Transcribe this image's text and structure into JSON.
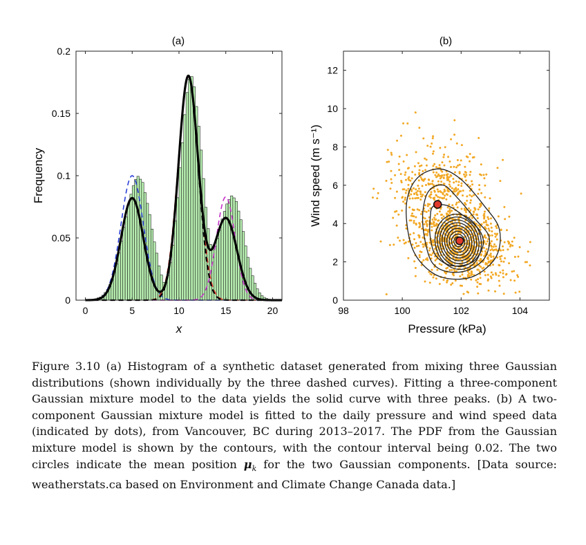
{
  "chart_data": [
    {
      "type": "bar",
      "panel_label": "(a)",
      "xlabel": "x",
      "ylabel": "Frequency",
      "xlim": [
        -1,
        21
      ],
      "ylim": [
        0,
        0.2
      ],
      "xticks": [
        0,
        5,
        10,
        15,
        20
      ],
      "yticks": [
        0,
        0.05,
        0.1,
        0.15,
        0.2
      ],
      "ytick_labels": [
        "0",
        "0.05",
        "0.1",
        "0.15",
        "0.2"
      ],
      "grid": false,
      "bar_color": "#b7eeb0",
      "histogram": {
        "bin_edges_start": 0,
        "bin_width": 0.25,
        "values": [
          0.0002,
          0.0003,
          0.0005,
          0.0008,
          0.0012,
          0.0019,
          0.0026,
          0.004,
          0.0062,
          0.0085,
          0.0125,
          0.0162,
          0.0228,
          0.0293,
          0.038,
          0.0476,
          0.0585,
          0.0668,
          0.0772,
          0.0851,
          0.0919,
          0.097,
          0.0995,
          0.0972,
          0.0946,
          0.0864,
          0.0778,
          0.0688,
          0.0571,
          0.0468,
          0.0378,
          0.0276,
          0.0202,
          0.0142,
          0.0142,
          0.02,
          0.0301,
          0.0441,
          0.0638,
          0.0823,
          0.1064,
          0.1265,
          0.149,
          0.1668,
          0.1776,
          0.1796,
          0.1714,
          0.1556,
          0.1398,
          0.1206,
          0.0977,
          0.0746,
          0.0575,
          0.0448,
          0.0405,
          0.0432,
          0.0498,
          0.0562,
          0.0652,
          0.0713,
          0.0773,
          0.0808,
          0.0838,
          0.0822,
          0.0793,
          0.0716,
          0.0646,
          0.0552,
          0.0436,
          0.0344,
          0.0256,
          0.0196,
          0.0136,
          0.0091,
          0.0058,
          0.0036,
          0.0022,
          0.0013,
          0.0008,
          0.0004
        ]
      },
      "series": [
        {
          "style": "dashed",
          "color": "#2b3fd6",
          "mean": 5,
          "sd": 1.2,
          "peak": 0.1
        },
        {
          "style": "dashed",
          "color": "#e8352a",
          "mean": 11,
          "sd": 1.1,
          "peak": 0.18
        },
        {
          "style": "dashed",
          "color": "#c430c8",
          "mean": 15,
          "sd": 1.0,
          "peak": 0.083
        },
        {
          "style": "solid",
          "color": "#000000",
          "components": [
            {
              "mean": 5,
              "sd": 1.2,
              "peak": 0.082
            },
            {
              "mean": 11,
              "sd": 1.05,
              "peak": 0.18
            },
            {
              "mean": 15,
              "sd": 1.2,
              "peak": 0.066
            }
          ]
        },
        {
          "style": "dashed",
          "color": "#000000",
          "mean": 11,
          "sd": 1.05,
          "peak": 0.18
        }
      ]
    },
    {
      "type": "scatter",
      "panel_label": "(b)",
      "xlabel": "Pressure (kPa)",
      "ylabel": "Wind speed (m s⁻¹)",
      "xlim": [
        98,
        105
      ],
      "ylim": [
        0,
        13
      ],
      "xticks": [
        98,
        100,
        102,
        104
      ],
      "yticks": [
        0,
        2,
        4,
        6,
        8,
        10,
        12
      ],
      "grid": false,
      "point_color": "#f2a824",
      "points": {
        "n": 1300,
        "mean": [
          101.9,
          3.1
        ],
        "sd": [
          0.9,
          1.2
        ],
        "correlation": -0.35
      },
      "contours": {
        "interval": 0.02,
        "center": [
          101.9,
          3.05
        ],
        "outer_paths": [
          [
            [
              100.6,
              6.5
            ],
            [
              101.3,
              6.85
            ],
            [
              102.0,
              6.3
            ],
            [
              102.8,
              4.9
            ],
            [
              103.3,
              3.7
            ],
            [
              103.2,
              2.3
            ],
            [
              102.5,
              1.3
            ],
            [
              101.7,
              1.1
            ],
            [
              101.0,
              1.45
            ],
            [
              100.4,
              2.5
            ],
            [
              100.15,
              4.1
            ],
            [
              100.2,
              5.5
            ]
          ],
          [
            [
              100.9,
              5.7
            ],
            [
              101.4,
              6.0
            ],
            [
              101.9,
              5.3
            ],
            [
              102.5,
              4.2
            ],
            [
              102.95,
              3.3
            ],
            [
              102.8,
              2.2
            ],
            [
              102.2,
              1.55
            ],
            [
              101.5,
              1.5
            ],
            [
              101.0,
              2.0
            ],
            [
              100.75,
              3.3
            ],
            [
              100.7,
              4.6
            ]
          ],
          [
            [
              101.05,
              4.9
            ],
            [
              101.5,
              4.95
            ],
            [
              102.0,
              4.5
            ],
            [
              102.6,
              3.7
            ],
            [
              102.75,
              2.9
            ],
            [
              102.4,
              2.0
            ],
            [
              101.7,
              1.8
            ],
            [
              101.15,
              2.3
            ],
            [
              100.95,
              3.3
            ],
            [
              100.95,
              4.3
            ]
          ]
        ],
        "ellipse_radii": [
          [
            0.78,
            1.45
          ],
          [
            0.7,
            1.3
          ],
          [
            0.62,
            1.15
          ],
          [
            0.54,
            1.0
          ],
          [
            0.46,
            0.85
          ],
          [
            0.38,
            0.7
          ],
          [
            0.3,
            0.55
          ],
          [
            0.22,
            0.4
          ],
          [
            0.14,
            0.26
          ],
          [
            0.07,
            0.13
          ]
        ]
      },
      "means": [
        {
          "label": "μ1",
          "x": 101.2,
          "y": 5.0
        },
        {
          "label": "μ2",
          "x": 101.95,
          "y": 3.1
        }
      ],
      "mean_marker_color": "#e03a2c"
    }
  ],
  "caption": {
    "text_1": "Figure 3.10 (a) Histogram of a synthetic dataset generated from mixing three Gaussian distributions (shown individually by the three dashed curves). Fitting a three-component Gaussian mixture model to the data yields the solid curve with three peaks. (b) A two-component Gaussian mixture model is fitted to the daily pressure and wind speed data (indicated by dots), from Vancouver, BC during 2013–2017. The PDF from the Gaussian mixture model is shown by the contours, with the contour interval being 0.02. The two circles indicate the mean position ",
    "mu": "μ",
    "mu_sub": "k",
    "text_2": " for the two Gaussian components. [Data source: weatherstats.ca based on Environment and Climate Change Canada data.]"
  }
}
